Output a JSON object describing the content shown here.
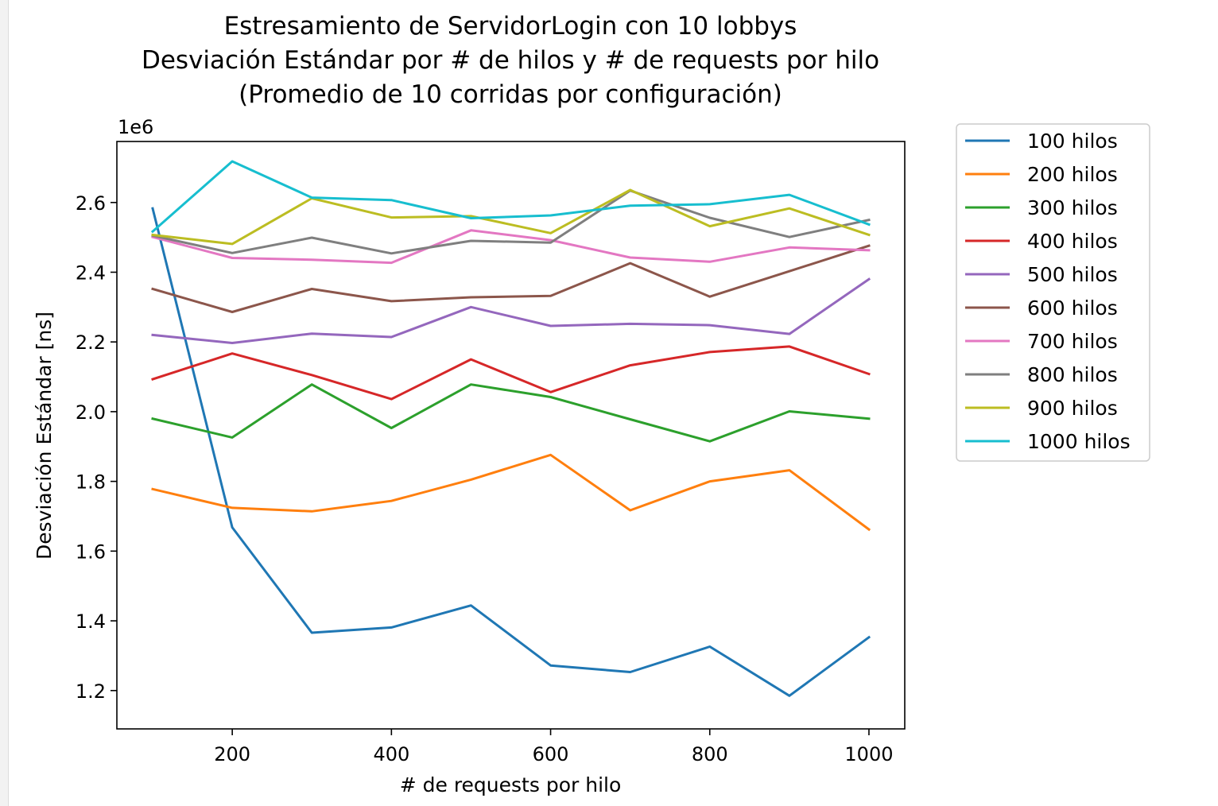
{
  "chart_data": {
    "type": "line",
    "title_lines": [
      "Estresamiento de ServidorLogin con 10 lobbys",
      "Desviación Estándar por # de hilos y # de requests por hilo",
      "(Promedio de 10 corridas por configuración)"
    ],
    "xlabel": "# de requests por hilo",
    "ylabel": "Desviación Estándar [ns]",
    "y_offset_text": "1e6",
    "xlim": [
      55,
      1045
    ],
    "ylim": [
      1.09,
      2.775
    ],
    "x_ticks": [
      200,
      400,
      600,
      800,
      1000
    ],
    "y_ticks": [
      1.2,
      1.4,
      1.6,
      1.8,
      2.0,
      2.2,
      2.4,
      2.6
    ],
    "x": [
      100,
      200,
      300,
      400,
      500,
      600,
      700,
      800,
      900,
      1000
    ],
    "grid": false,
    "legend_position": "outside upper right",
    "series": [
      {
        "name": "100 hilos",
        "color": "#1f77b4",
        "values": [
          2.583,
          1.668,
          1.366,
          1.381,
          1.444,
          1.272,
          1.253,
          1.326,
          1.185,
          1.353
        ]
      },
      {
        "name": "200 hilos",
        "color": "#ff7f0e",
        "values": [
          1.778,
          1.724,
          1.714,
          1.744,
          1.805,
          1.876,
          1.717,
          1.8,
          1.832,
          1.662
        ]
      },
      {
        "name": "300 hilos",
        "color": "#2ca02c",
        "values": [
          1.98,
          1.926,
          2.078,
          1.953,
          2.078,
          2.042,
          1.978,
          1.915,
          2.001,
          1.98
        ]
      },
      {
        "name": "400 hilos",
        "color": "#d62728",
        "values": [
          2.093,
          2.167,
          2.105,
          2.036,
          2.15,
          2.056,
          2.133,
          2.171,
          2.187,
          2.108
        ]
      },
      {
        "name": "500 hilos",
        "color": "#9467bd",
        "values": [
          2.22,
          2.197,
          2.224,
          2.214,
          2.3,
          2.246,
          2.252,
          2.248,
          2.223,
          2.38
        ]
      },
      {
        "name": "600 hilos",
        "color": "#8c564b",
        "values": [
          2.352,
          2.286,
          2.352,
          2.317,
          2.328,
          2.332,
          2.426,
          2.33,
          2.403,
          2.476
        ]
      },
      {
        "name": "700 hilos",
        "color": "#e377c2",
        "values": [
          2.501,
          2.441,
          2.436,
          2.427,
          2.52,
          2.492,
          2.442,
          2.43,
          2.471,
          2.463
        ]
      },
      {
        "name": "800 hilos",
        "color": "#7f7f7f",
        "values": [
          2.505,
          2.455,
          2.499,
          2.454,
          2.49,
          2.485,
          2.634,
          2.556,
          2.501,
          2.55
        ]
      },
      {
        "name": "900 hilos",
        "color": "#bcbd22",
        "values": [
          2.507,
          2.481,
          2.612,
          2.557,
          2.561,
          2.512,
          2.636,
          2.532,
          2.583,
          2.507
        ]
      },
      {
        "name": "1000 hilos",
        "color": "#17becf",
        "values": [
          2.517,
          2.718,
          2.614,
          2.607,
          2.555,
          2.563,
          2.591,
          2.595,
          2.622,
          2.537
        ]
      }
    ]
  }
}
